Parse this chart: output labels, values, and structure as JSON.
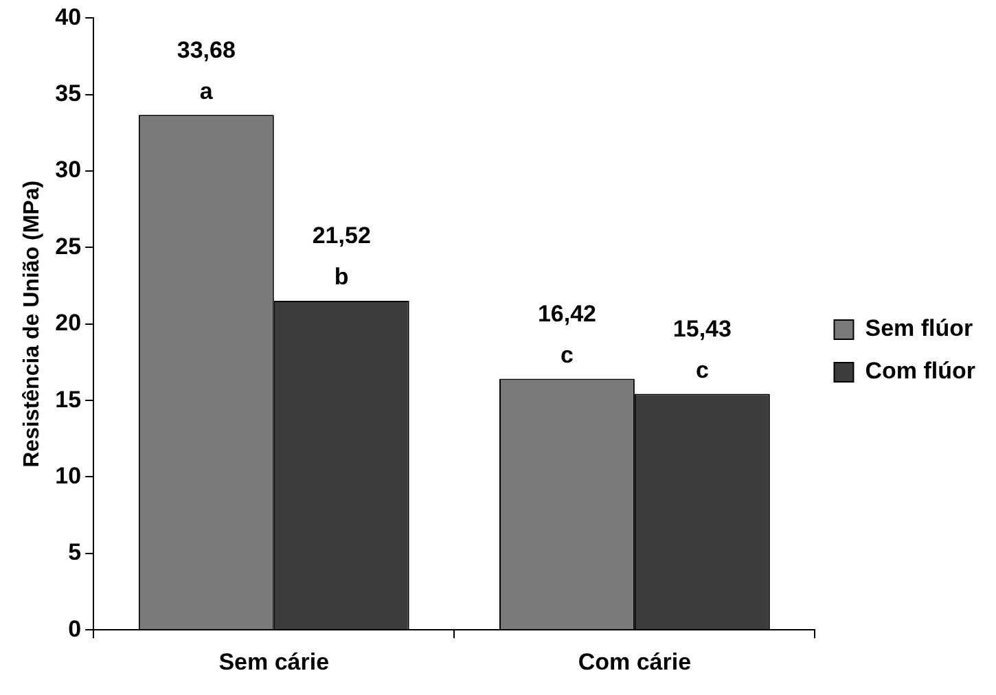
{
  "chart_data": {
    "type": "bar",
    "ylabel": "Resistência de União (MPa)",
    "categories": [
      "Sem cárie",
      "Com cárie"
    ],
    "series": [
      {
        "name": "Sem flúor",
        "color": "#7a7a7a",
        "values": [
          33.68,
          16.42
        ],
        "value_labels": [
          "33,68",
          "16,42"
        ]
      },
      {
        "name": "Com flúor",
        "color": "#3c3c3c",
        "values": [
          21.52,
          15.43
        ],
        "value_labels": [
          "21,52",
          "15,43"
        ]
      }
    ],
    "annotations": [
      {
        "text": "a",
        "x": "Sem cárie",
        "y": 33.68
      },
      {
        "text": "b",
        "x": "Sem cárie",
        "y": 21.52
      },
      {
        "text": "c",
        "x": "Com cárie",
        "y": 16.42
      },
      {
        "text": "c",
        "x": "Com cárie",
        "y": 15.43
      }
    ],
    "ylim": [
      0,
      40
    ],
    "yticks": [
      0,
      5,
      10,
      15,
      20,
      25,
      30,
      35,
      40
    ],
    "grid": false,
    "legend": "right"
  }
}
